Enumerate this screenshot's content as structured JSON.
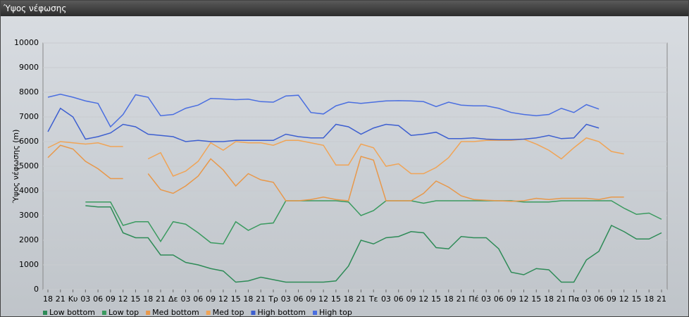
{
  "chart_data": {
    "type": "line",
    "title": "Ύψος νέφωσης",
    "y_label": "Ύψος νέφωσης (m)",
    "categories": [
      "18",
      "21",
      "Κυ",
      "03",
      "06",
      "09",
      "12",
      "15",
      "18",
      "21",
      "Δε",
      "03",
      "06",
      "09",
      "12",
      "15",
      "18",
      "21",
      "Τρ",
      "03",
      "06",
      "09",
      "12",
      "15",
      "18",
      "21",
      "Τε",
      "03",
      "06",
      "09",
      "12",
      "15",
      "18",
      "21",
      "Πέ",
      "03",
      "06",
      "09",
      "12",
      "15",
      "18",
      "21",
      "Πα",
      "03",
      "06",
      "09",
      "12",
      "15",
      "18",
      "21"
    ],
    "ylim": [
      0,
      10000
    ],
    "yticks": [
      0,
      1000,
      2000,
      3000,
      4000,
      5000,
      6000,
      7000,
      8000,
      9000,
      10000
    ],
    "grid": true,
    "legend": "bottom",
    "series": [
      {
        "name": "Low bottom",
        "color": "#2e8b57",
        "values": [
          null,
          null,
          null,
          3400,
          3350,
          3350,
          2300,
          2100,
          2100,
          1400,
          1400,
          1100,
          1000,
          850,
          750,
          300,
          350,
          500,
          400,
          300,
          300,
          300,
          300,
          350,
          950,
          2000,
          1850,
          2100,
          2150,
          2350,
          2300,
          1700,
          1650,
          2150,
          2100,
          2100,
          1650,
          700,
          600,
          850,
          800,
          300,
          300,
          1200,
          1550,
          2600,
          2350,
          2050,
          2050,
          2300
        ]
      },
      {
        "name": "Low top",
        "color": "#3a9a5f",
        "values": [
          null,
          null,
          null,
          3550,
          3550,
          3550,
          2600,
          2750,
          2750,
          1950,
          2750,
          2650,
          2300,
          1900,
          1850,
          2750,
          2400,
          2650,
          2700,
          3600,
          3600,
          3600,
          3600,
          3600,
          3550,
          3000,
          3200,
          3600,
          3600,
          3600,
          3500,
          3600,
          3600,
          3600,
          3600,
          3600,
          3600,
          3600,
          3550,
          3550,
          3550,
          3600,
          3600,
          3600,
          3600,
          3600,
          3300,
          3050,
          3100,
          2850
        ]
      },
      {
        "name": "Med bottom",
        "color": "#e8984a",
        "values": [
          5350,
          5850,
          5700,
          5200,
          4900,
          4500,
          4500,
          null,
          4700,
          4050,
          3900,
          4200,
          4600,
          5300,
          4850,
          4200,
          4700,
          4450,
          4350,
          3600,
          3600,
          3650,
          3750,
          3650,
          3600,
          5400,
          5250,
          3600,
          3600,
          3600,
          3900,
          4400,
          4150,
          3800,
          3650,
          3620,
          3600,
          3580,
          3600,
          3700,
          3650,
          3700,
          3700,
          3700,
          3650,
          3750,
          3750,
          null,
          null,
          null
        ]
      },
      {
        "name": "Med top",
        "color": "#f0a456",
        "values": [
          5750,
          6000,
          5950,
          5900,
          5950,
          5800,
          5800,
          null,
          5300,
          5550,
          4600,
          4800,
          5200,
          5950,
          5650,
          6000,
          5950,
          5950,
          5850,
          6050,
          6050,
          5950,
          5850,
          5050,
          5050,
          5900,
          5750,
          5000,
          5100,
          4700,
          4700,
          4950,
          5350,
          6000,
          6000,
          6050,
          6050,
          6050,
          6100,
          5900,
          5650,
          5300,
          5750,
          6150,
          6000,
          5600,
          5500,
          null,
          null,
          null
        ]
      },
      {
        "name": "High bottom",
        "color": "#3d5fd0",
        "values": [
          6400,
          7350,
          7000,
          6100,
          6200,
          6350,
          6700,
          6600,
          6300,
          6250,
          6200,
          6000,
          6050,
          6000,
          6000,
          6050,
          6050,
          6050,
          6050,
          6300,
          6200,
          6150,
          6150,
          6700,
          6600,
          6300,
          6550,
          6700,
          6650,
          6250,
          6300,
          6380,
          6120,
          6120,
          6150,
          6100,
          6080,
          6080,
          6100,
          6150,
          6250,
          6120,
          6150,
          6700,
          6550,
          null,
          null,
          null,
          null,
          null
        ]
      },
      {
        "name": "High top",
        "color": "#4a6ee0",
        "values": [
          7800,
          7920,
          7800,
          7650,
          7550,
          6600,
          7100,
          7900,
          7800,
          7050,
          7100,
          7350,
          7480,
          7750,
          7730,
          7700,
          7720,
          7620,
          7600,
          7850,
          7880,
          7180,
          7120,
          7450,
          7600,
          7550,
          7600,
          7650,
          7660,
          7650,
          7620,
          7420,
          7600,
          7480,
          7450,
          7450,
          7350,
          7180,
          7100,
          7050,
          7100,
          7350,
          7180,
          7500,
          7320,
          null,
          null,
          null,
          null,
          null
        ]
      }
    ]
  }
}
